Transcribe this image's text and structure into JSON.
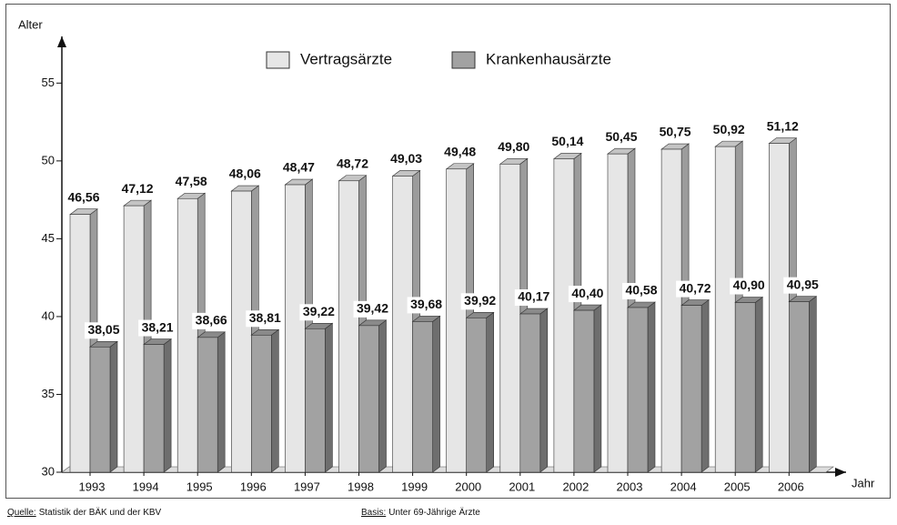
{
  "chart_data": {
    "type": "bar",
    "y_label": "Alter",
    "x_label": "Jahr",
    "categories": [
      "1993",
      "1994",
      "1995",
      "1996",
      "1997",
      "1998",
      "1999",
      "2000",
      "2001",
      "2002",
      "2003",
      "2004",
      "2005",
      "2006"
    ],
    "series": [
      {
        "name": "Vertragsärzte",
        "color": "#e6e6e6",
        "values": [
          46.56,
          47.12,
          47.58,
          48.06,
          48.47,
          48.72,
          49.03,
          49.48,
          49.8,
          50.14,
          50.45,
          50.75,
          50.92,
          51.12
        ],
        "value_labels": [
          "46,56",
          "47,12",
          "47,58",
          "48,06",
          "48,47",
          "48,72",
          "49,03",
          "49,48",
          "49,80",
          "50,14",
          "50,45",
          "50,75",
          "50,92",
          "51,12"
        ]
      },
      {
        "name": "Krankenhausärzte",
        "color": "#a2a2a2",
        "values": [
          38.05,
          38.21,
          38.66,
          38.81,
          39.22,
          39.42,
          39.68,
          39.92,
          40.17,
          40.4,
          40.58,
          40.72,
          40.9,
          40.95
        ],
        "value_labels": [
          "38,05",
          "38,21",
          "38,66",
          "38,81",
          "39,22",
          "39,42",
          "39,68",
          "39,92",
          "40,17",
          "40,40",
          "40,58",
          "40,72",
          "40,90",
          "40,95"
        ]
      }
    ],
    "ylim": [
      30,
      58
    ],
    "yticks": [
      30,
      35,
      40,
      45,
      50,
      55
    ],
    "sources": [
      {
        "label": "Quelle:",
        "text": "Statistik der BÄK und der KBV"
      },
      {
        "label": "Basis:",
        "text": "Unter 69-Jährige Ärzte"
      }
    ]
  }
}
